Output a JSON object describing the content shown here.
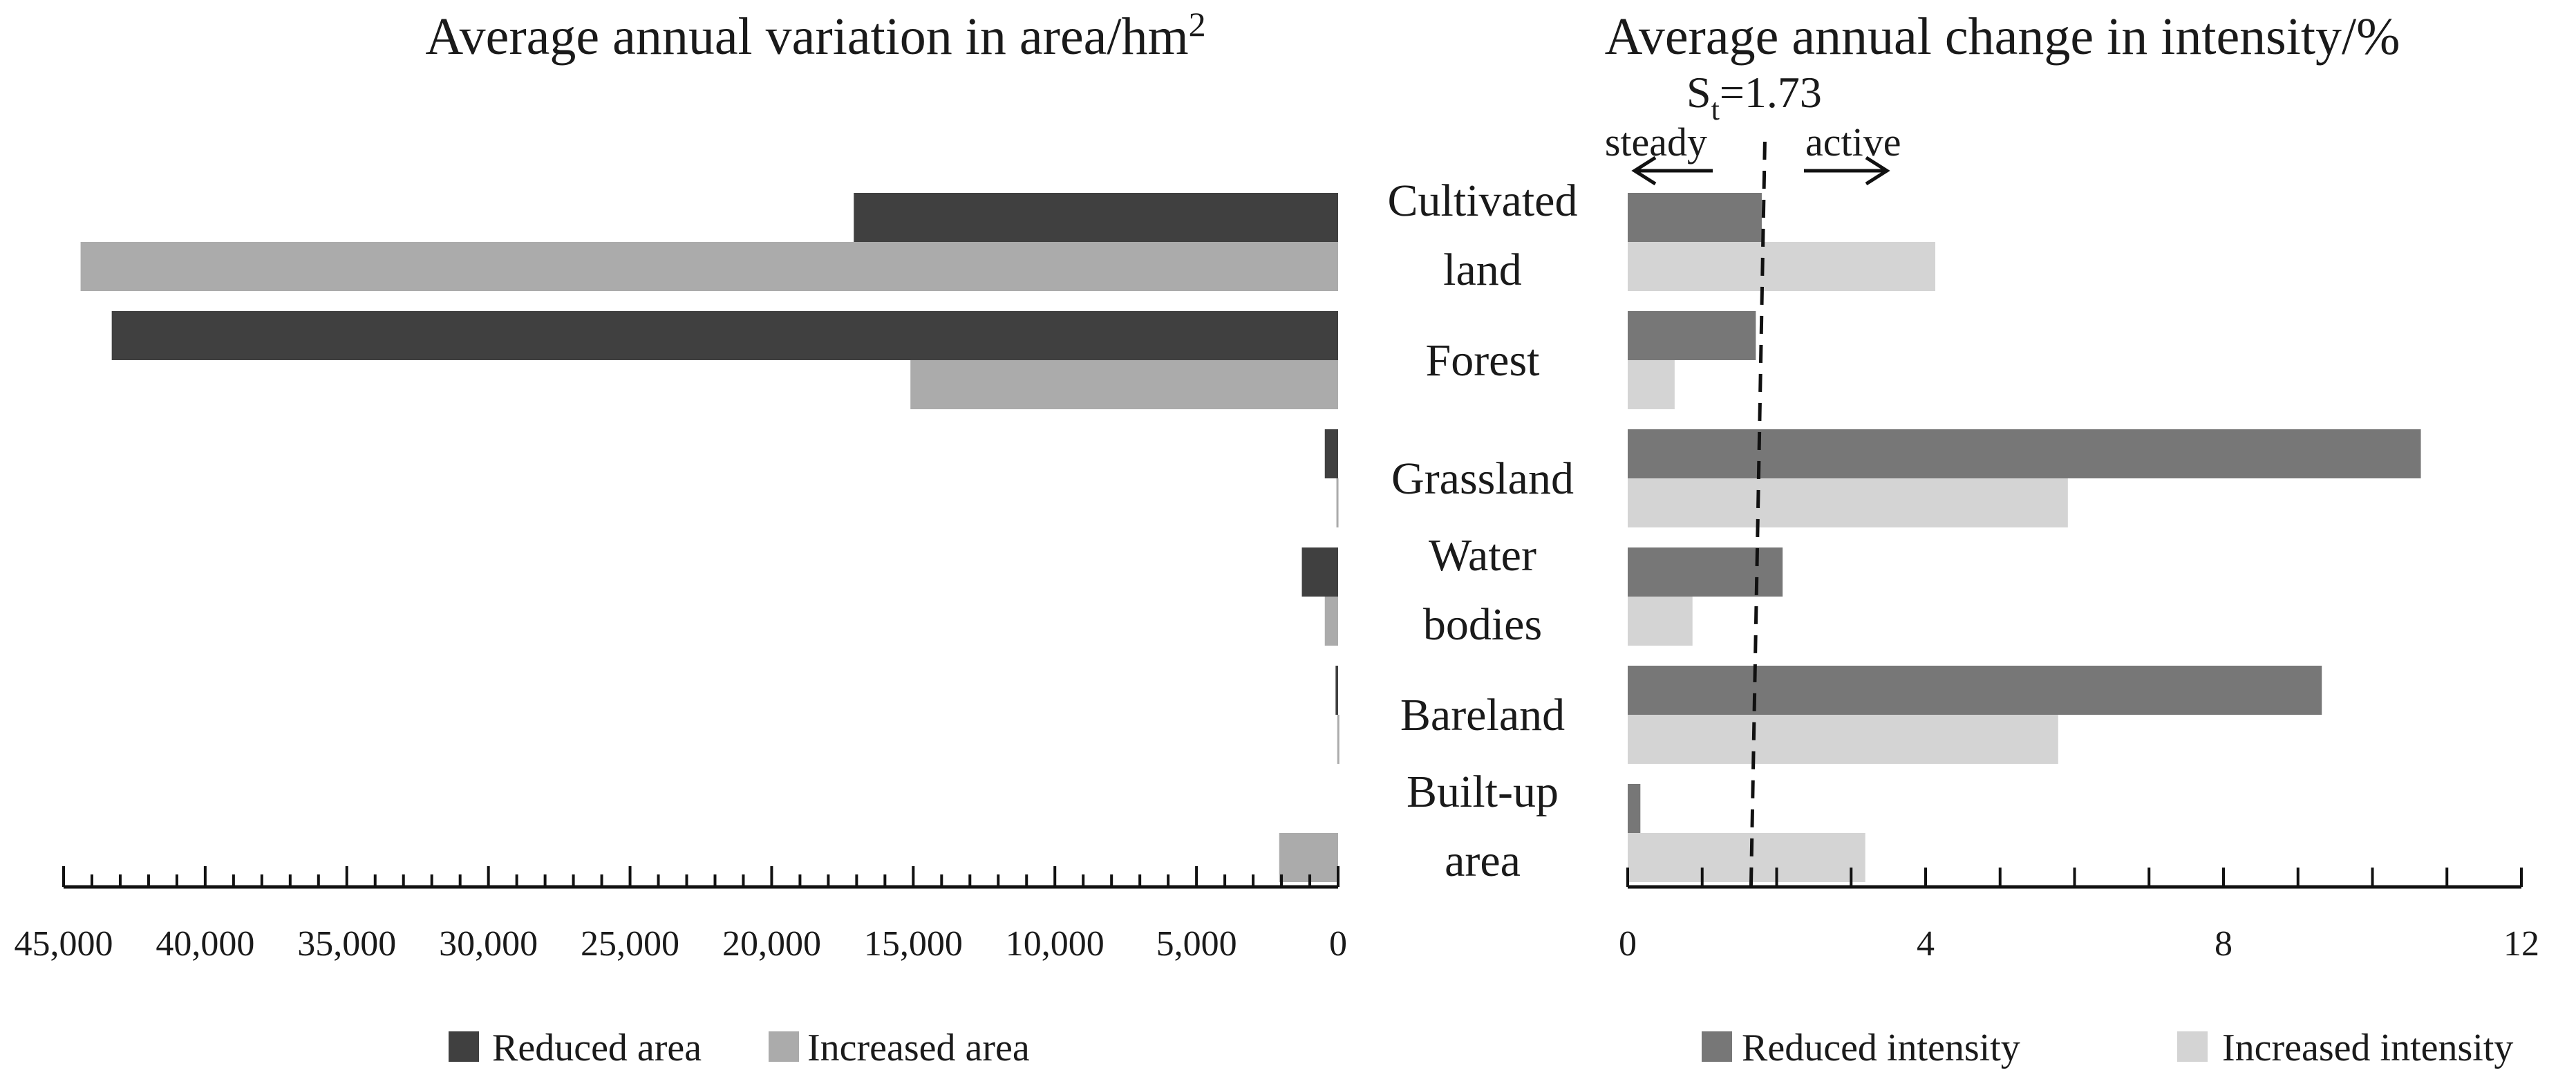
{
  "chart_data": [
    {
      "type": "bar",
      "orientation": "horizontal",
      "direction": "right-to-left",
      "title": "Average annual variation in area/hm",
      "title_superscript": "2",
      "categories": [
        "Cultivated land",
        "Forest",
        "Grassland",
        "Water bodies",
        "Bareland",
        "Built-up area"
      ],
      "xlim": [
        0,
        45000
      ],
      "tick_labels": [
        "45,000",
        "40,000",
        "35,000",
        "30,000",
        "25,000",
        "20,000",
        "15,000",
        "10,000",
        "5,000",
        "0"
      ],
      "ticks": [
        45000,
        40000,
        35000,
        30000,
        25000,
        20000,
        15000,
        10000,
        5000,
        0
      ],
      "grid": false,
      "legend_position": "bottom",
      "series": [
        {
          "name": "Reduced area",
          "color": "#404040",
          "values": [
            17100,
            43300,
            470,
            1280,
            90,
            0
          ]
        },
        {
          "name": "Increased area",
          "color": "#ababab",
          "values": [
            44400,
            15100,
            60,
            470,
            30,
            2080
          ]
        }
      ]
    },
    {
      "type": "bar",
      "orientation": "horizontal",
      "title": "Average annual change in intensity/%",
      "categories": [
        "Cultivated land",
        "Forest",
        "Grassland",
        "Water bodies",
        "Bareland",
        "Built-up area"
      ],
      "xlim": [
        0,
        12
      ],
      "tick_labels": [
        "0",
        "4",
        "8",
        "12"
      ],
      "ticks": [
        0,
        4,
        8,
        12
      ],
      "grid": false,
      "legend_position": "bottom",
      "series": [
        {
          "name": "Reduced intensity",
          "color": "#777777",
          "values": [
            1.8,
            1.72,
            10.65,
            2.08,
            9.32,
            0.17
          ]
        },
        {
          "name": "Increased intensity",
          "color": "#d4d4d4",
          "values": [
            4.13,
            0.63,
            5.91,
            0.87,
            5.78,
            3.19
          ]
        }
      ],
      "reference_line": {
        "value": 1.73,
        "label_main": "S",
        "label_sub": "t",
        "label_rest": "=1.73",
        "style": "dashed"
      },
      "annotations": {
        "left": "steady",
        "right": "active"
      }
    }
  ],
  "category_label_lines": [
    [
      "Cultivated",
      "land"
    ],
    [
      "Forest"
    ],
    [
      "Grassland"
    ],
    [
      "Water",
      "bodies"
    ],
    [
      "Bareland"
    ],
    [
      "Built-up",
      "area"
    ]
  ]
}
